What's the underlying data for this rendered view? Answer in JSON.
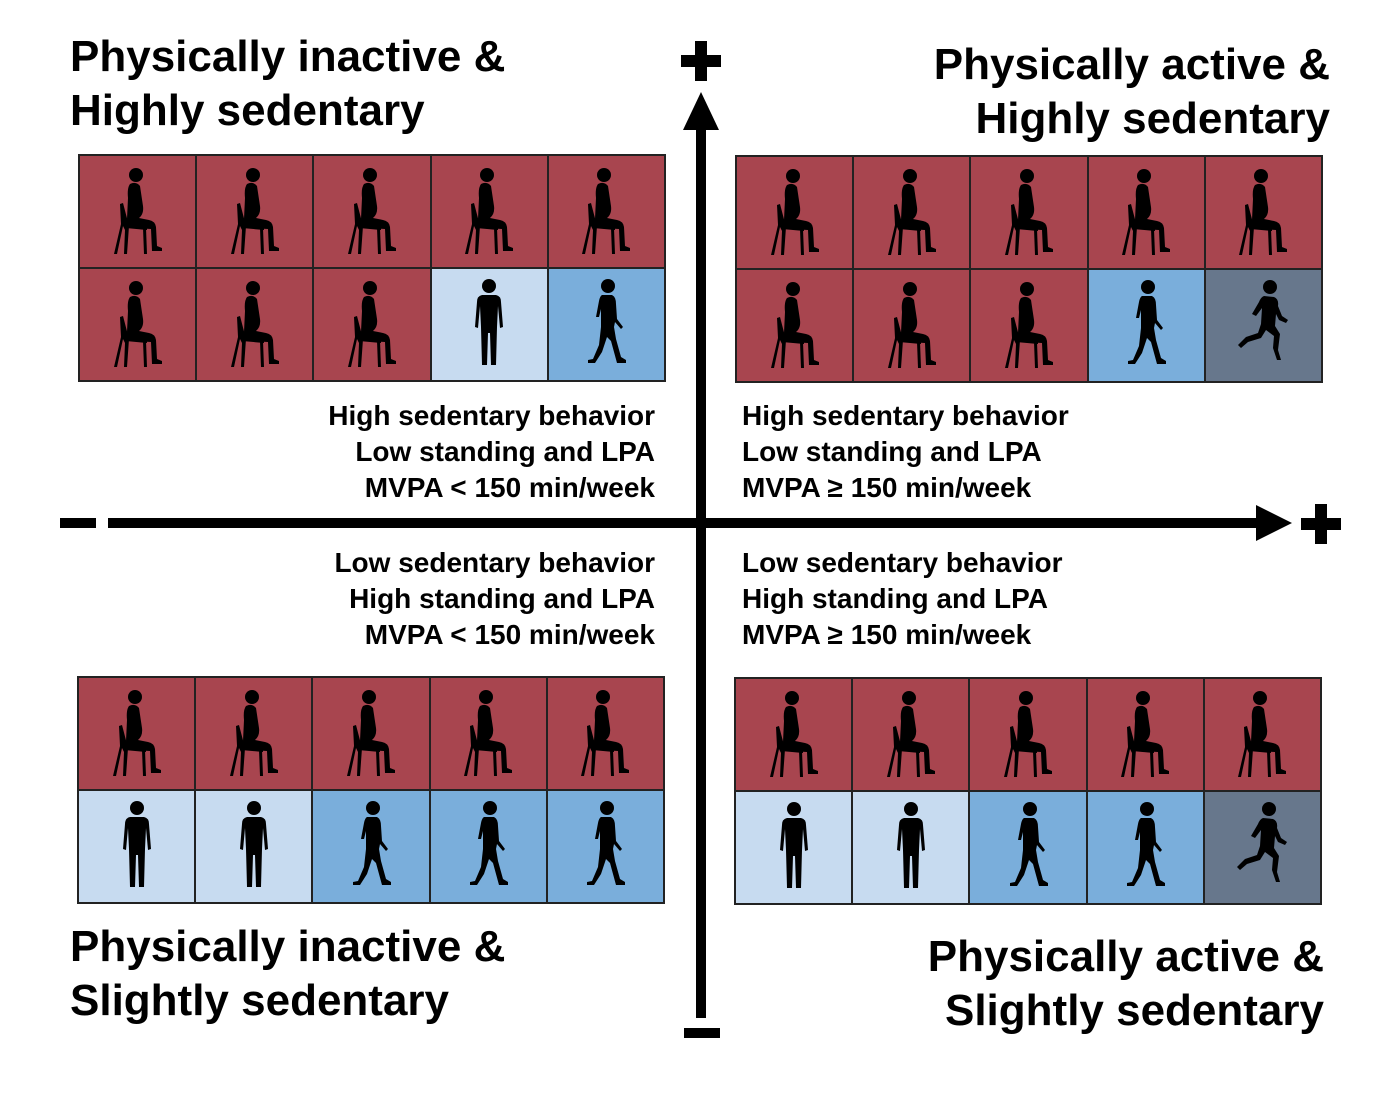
{
  "quadrants": {
    "top_left": {
      "title": [
        "Physically inactive &",
        "Highly sedentary"
      ],
      "description": [
        "High sedentary behavior",
        "Low standing and LPA",
        "MVPA < 150 min/week"
      ],
      "activities": [
        "sitting",
        "sitting",
        "sitting",
        "sitting",
        "sitting",
        "sitting",
        "sitting",
        "sitting",
        "standing",
        "walking"
      ]
    },
    "top_right": {
      "title": [
        "Physically active &",
        "Highly sedentary"
      ],
      "description": [
        "High sedentary behavior",
        "Low standing and LPA",
        "MVPA ≥ 150 min/week"
      ],
      "activities": [
        "sitting",
        "sitting",
        "sitting",
        "sitting",
        "sitting",
        "sitting",
        "sitting",
        "sitting",
        "walking",
        "running"
      ]
    },
    "bottom_left": {
      "title": [
        "Physically inactive &",
        "Slightly sedentary"
      ],
      "description": [
        "Low sedentary behavior",
        "High standing and LPA",
        "MVPA < 150 min/week"
      ],
      "activities": [
        "sitting",
        "sitting",
        "sitting",
        "sitting",
        "sitting",
        "standing",
        "standing",
        "walking",
        "walking",
        "walking"
      ]
    },
    "bottom_right": {
      "title": [
        "Physically active &",
        "Slightly sedentary"
      ],
      "description": [
        "Low sedentary behavior",
        "High standing and LPA",
        "MVPA ≥ 150 min/week"
      ],
      "activities": [
        "sitting",
        "sitting",
        "sitting",
        "sitting",
        "sitting",
        "standing",
        "standing",
        "walking",
        "walking",
        "running"
      ]
    }
  },
  "axis_signs": {
    "top": "+",
    "bottom": "−",
    "left": "−",
    "right": "+"
  },
  "colors": {
    "sitting": "#a8454f",
    "standing": "#c7dbf0",
    "walking": "#7aaedb",
    "running": "#67778c"
  },
  "icons": {
    "sitting": "sitting-person-icon",
    "standing": "standing-person-icon",
    "walking": "walking-person-icon",
    "running": "running-person-icon"
  }
}
